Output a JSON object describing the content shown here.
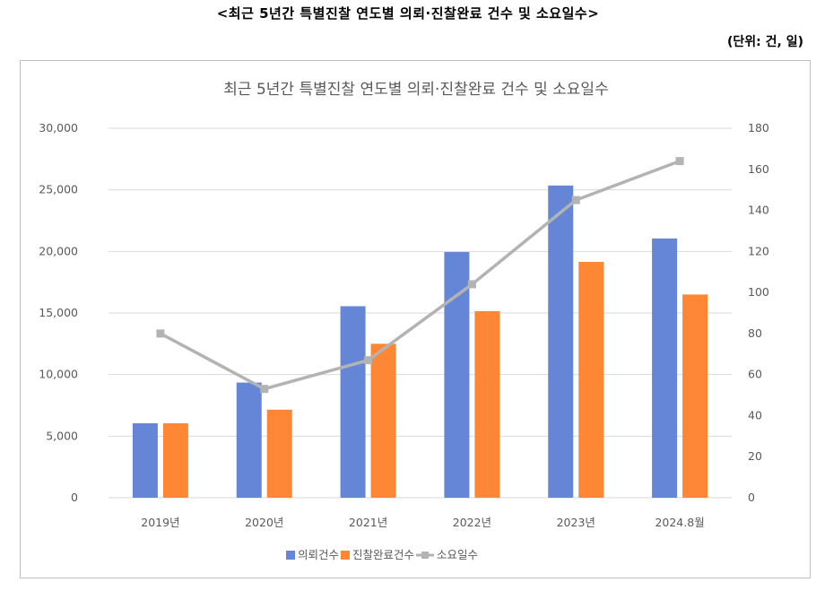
{
  "header": {
    "title": "<최근 5년간 특별진찰 연도별 의뢰·진찰완료 건수 및 소요일수>",
    "unit_note": "(단위: 건, 일)"
  },
  "colors": {
    "requests": "#6586d6",
    "completions": "#fd8734",
    "days": "#b3b3b3",
    "grid": "#d9d9d9",
    "axis_text": "#595959"
  },
  "chart_data": {
    "type": "bar",
    "title": "최근 5년간 특별진찰 연도별 의뢰·진찰완료 건수 및 소요일수",
    "categories": [
      "2019년",
      "2020년",
      "2021년",
      "2022년",
      "2023년",
      "2024.8월"
    ],
    "series": [
      {
        "name": "의뢰건수",
        "type": "bar",
        "axis": "left",
        "values": [
          6050,
          9350,
          15550,
          19950,
          25350,
          21050
        ]
      },
      {
        "name": "진찰완료건수",
        "type": "bar",
        "axis": "left",
        "values": [
          6050,
          7150,
          12500,
          15150,
          19150,
          16500
        ]
      },
      {
        "name": "소요일수",
        "type": "line",
        "axis": "right",
        "values": [
          80,
          53,
          67,
          104,
          145,
          164
        ]
      }
    ],
    "y_left": {
      "range": [
        0,
        30000
      ],
      "ticks": [
        "0",
        "5,000",
        "10,000",
        "15,000",
        "20,000",
        "25,000",
        "30,000"
      ]
    },
    "y_right": {
      "range": [
        0,
        180
      ],
      "ticks": [
        "0",
        "20",
        "40",
        "60",
        "80",
        "100",
        "120",
        "140",
        "160",
        "180"
      ]
    },
    "grid": true,
    "legend_position": "bottom"
  }
}
